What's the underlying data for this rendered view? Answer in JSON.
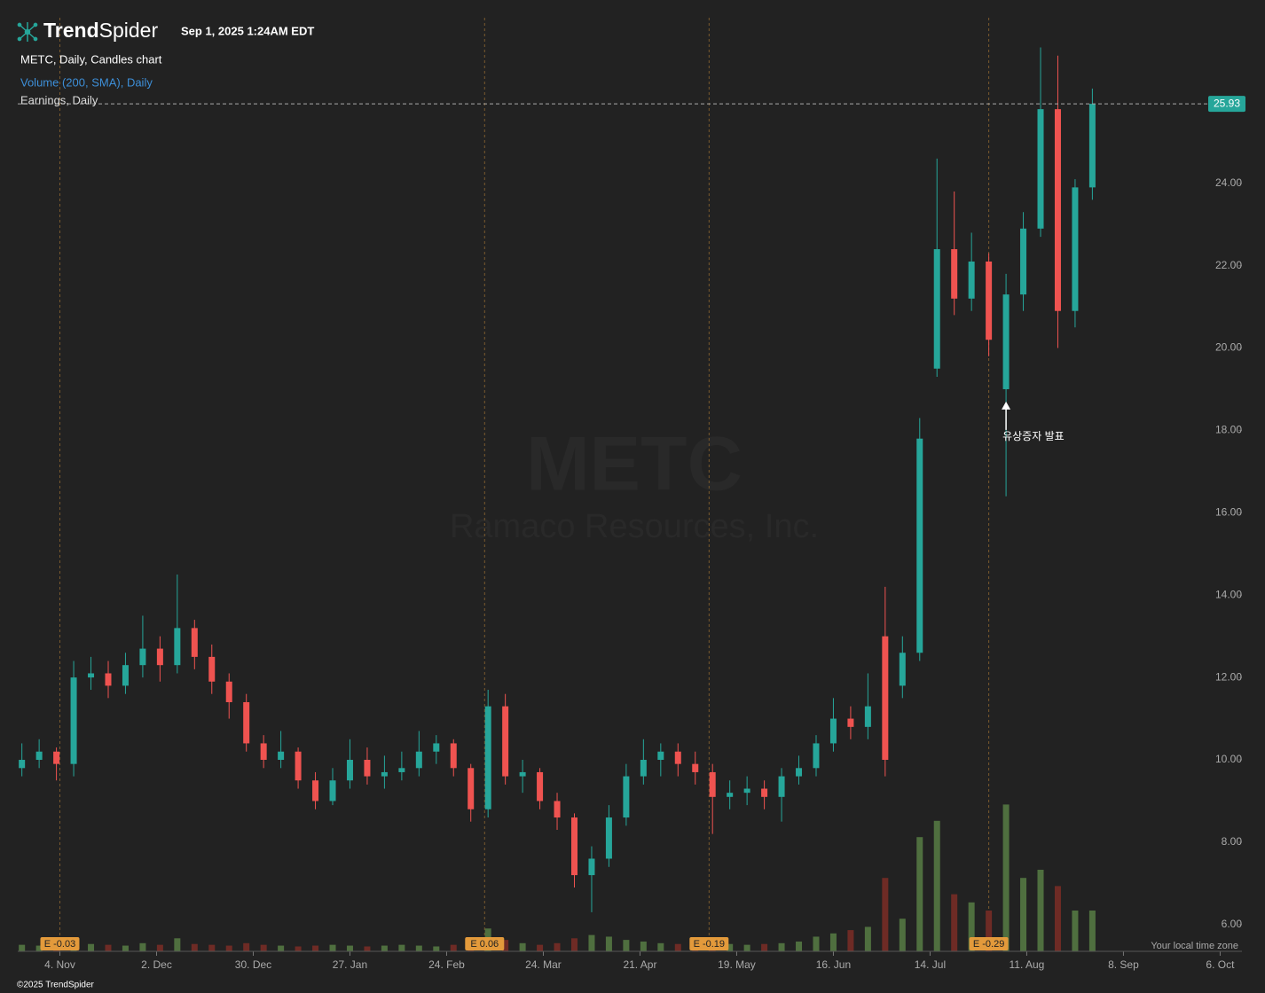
{
  "header": {
    "brand_bold": "Trend",
    "brand_light": "Spider",
    "timestamp": "Sep 1, 2025 1:24AM EDT"
  },
  "legend": [
    "METC, Daily, Candles chart",
    "Volume (200, SMA), Daily",
    "Earnings, Daily"
  ],
  "watermark": {
    "symbol": "METC",
    "company": "Ramaco Resources, Inc."
  },
  "chart_data": {
    "type": "candlestick",
    "x": [
      -11,
      -6,
      -1,
      4,
      9,
      14,
      19,
      24,
      29,
      34,
      39,
      44,
      49,
      54,
      59,
      64,
      69,
      74,
      79,
      84,
      89,
      94,
      99,
      104,
      109,
      114,
      119,
      124,
      129,
      134,
      139,
      144,
      149,
      154,
      159,
      164,
      169,
      174,
      179,
      184,
      189,
      194,
      199,
      204,
      209,
      214,
      219,
      224,
      229,
      234,
      239,
      244,
      249,
      254,
      259,
      264,
      269,
      274,
      279,
      284,
      289,
      294,
      299
    ],
    "open": [
      9.8,
      10.0,
      10.2,
      9.9,
      12.0,
      12.1,
      11.8,
      12.3,
      12.7,
      12.3,
      13.2,
      12.5,
      11.9,
      11.4,
      10.4,
      10.0,
      10.2,
      9.5,
      9.0,
      9.5,
      10.0,
      9.6,
      9.7,
      9.8,
      10.2,
      10.4,
      9.8,
      8.8,
      11.3,
      9.6,
      9.7,
      9.0,
      8.6,
      7.2,
      7.6,
      8.6,
      9.6,
      10.0,
      10.2,
      9.9,
      9.7,
      9.1,
      9.2,
      9.3,
      9.1,
      9.6,
      9.8,
      10.4,
      11.0,
      10.8,
      13.0,
      11.8,
      12.6,
      19.5,
      22.4,
      21.2,
      22.1,
      19.0,
      21.3,
      22.9,
      25.8,
      20.9,
      23.9
    ],
    "high": [
      10.4,
      10.5,
      10.3,
      12.4,
      12.5,
      12.4,
      12.6,
      13.5,
      13.0,
      14.5,
      13.4,
      12.8,
      12.1,
      11.6,
      10.6,
      10.7,
      10.3,
      9.7,
      9.8,
      10.5,
      10.3,
      10.1,
      10.2,
      10.7,
      10.6,
      10.5,
      9.9,
      11.7,
      11.6,
      10.0,
      9.8,
      9.2,
      8.7,
      7.9,
      8.9,
      9.9,
      10.5,
      10.4,
      10.4,
      10.2,
      9.9,
      9.5,
      9.6,
      9.5,
      9.8,
      10.1,
      10.6,
      11.5,
      11.3,
      12.1,
      14.2,
      13.0,
      18.3,
      24.6,
      23.8,
      22.8,
      22.3,
      21.8,
      23.3,
      27.3,
      27.1,
      24.1,
      26.3
    ],
    "low": [
      9.6,
      9.8,
      9.5,
      9.6,
      11.7,
      11.5,
      11.6,
      12.0,
      11.9,
      12.1,
      12.2,
      11.6,
      11.0,
      10.2,
      9.8,
      9.8,
      9.3,
      8.8,
      8.9,
      9.3,
      9.4,
      9.3,
      9.5,
      9.6,
      9.9,
      9.6,
      8.5,
      8.6,
      9.4,
      9.2,
      8.8,
      8.3,
      6.9,
      6.3,
      7.4,
      8.4,
      9.4,
      9.6,
      9.6,
      9.4,
      8.2,
      8.8,
      8.9,
      8.8,
      8.5,
      9.4,
      9.6,
      10.2,
      10.5,
      10.5,
      9.6,
      11.5,
      12.4,
      19.3,
      20.8,
      20.9,
      19.8,
      16.4,
      20.9,
      22.7,
      20.0,
      20.5,
      23.6
    ],
    "close": [
      10.0,
      10.2,
      9.9,
      12.0,
      12.1,
      11.8,
      12.3,
      12.7,
      12.3,
      13.2,
      12.5,
      11.9,
      11.4,
      10.4,
      10.0,
      10.2,
      9.5,
      9.0,
      9.5,
      10.0,
      9.6,
      9.7,
      9.8,
      10.2,
      10.4,
      9.8,
      8.8,
      11.3,
      9.6,
      9.7,
      9.0,
      8.6,
      7.2,
      7.6,
      8.6,
      9.6,
      10.0,
      10.2,
      9.9,
      9.7,
      9.1,
      9.2,
      9.3,
      9.1,
      9.6,
      9.8,
      10.4,
      11.0,
      10.8,
      11.3,
      10.0,
      12.6,
      17.8,
      22.4,
      21.2,
      22.1,
      20.2,
      21.3,
      22.9,
      25.8,
      20.9,
      23.9,
      25.93
    ],
    "volume": [
      400000,
      350000,
      300000,
      500000,
      450000,
      400000,
      350000,
      500000,
      400000,
      800000,
      450000,
      400000,
      350000,
      500000,
      400000,
      350000,
      300000,
      350000,
      400000,
      350000,
      300000,
      350000,
      400000,
      350000,
      300000,
      400000,
      500000,
      1400000,
      700000,
      500000,
      400000,
      500000,
      800000,
      1000000,
      900000,
      700000,
      600000,
      500000,
      450000,
      400000,
      500000,
      450000,
      400000,
      450000,
      500000,
      600000,
      900000,
      1100000,
      1300000,
      1500000,
      4500000,
      2000000,
      7000000,
      8000000,
      3500000,
      3000000,
      2500000,
      9000000,
      4500000,
      5000000,
      4000000,
      2500000,
      2500000
    ],
    "up_color": "#26a69a",
    "down_color": "#ef5350",
    "volume_up_color": "#4f6f3f",
    "volume_down_color": "#6e2b25",
    "ylim": [
      5.35,
      28.02
    ],
    "yticks": [
      {
        "value": 6,
        "label": "6.00"
      },
      {
        "value": 8,
        "label": "8.00"
      },
      {
        "value": 10,
        "label": "10.00"
      },
      {
        "value": 12,
        "label": "12.00"
      },
      {
        "value": 14,
        "label": "14.00"
      },
      {
        "value": 16,
        "label": "16.00"
      },
      {
        "value": 18,
        "label": "18.00"
      },
      {
        "value": 20,
        "label": "20.00"
      },
      {
        "value": 22,
        "label": "22.00"
      },
      {
        "value": 24,
        "label": "24.00"
      },
      {
        "value": 26,
        "label": "26.00"
      }
    ],
    "xlim": [
      -12.2,
      340
    ],
    "xticks": [
      {
        "value": 0,
        "label": "4. Nov"
      },
      {
        "value": 28,
        "label": "2. Dec"
      },
      {
        "value": 56,
        "label": "30. Dec"
      },
      {
        "value": 84,
        "label": "27. Jan"
      },
      {
        "value": 112,
        "label": "24. Feb"
      },
      {
        "value": 140,
        "label": "24. Mar"
      },
      {
        "value": 168,
        "label": "21. Apr"
      },
      {
        "value": 196,
        "label": "19. May"
      },
      {
        "value": 224,
        "label": "16. Jun"
      },
      {
        "value": 252,
        "label": "14. Jul"
      },
      {
        "value": 280,
        "label": "11. Aug"
      },
      {
        "value": 308,
        "label": "8. Sep"
      },
      {
        "value": 336,
        "label": "6. Oct"
      }
    ],
    "volume_lim": [
      0,
      10000000
    ],
    "last_price_line": true,
    "earnings": [
      {
        "x": 0,
        "label": "E -0.03"
      },
      {
        "x": 123,
        "label": "E 0.06"
      },
      {
        "x": 188,
        "label": "E -0.19"
      },
      {
        "x": 269,
        "label": "E -0.29"
      }
    ],
    "annotations": [
      {
        "text": "유상증자 발표",
        "x": 274,
        "y": 18.7
      }
    ],
    "timezone_note": "Your local time zone"
  },
  "footer": "©2025 TrendSpider"
}
